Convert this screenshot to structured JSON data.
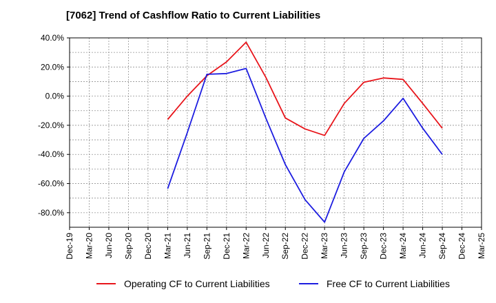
{
  "title": "[7062]  Trend of Cashflow Ratio to Current Liabilities",
  "chart_data": {
    "type": "line",
    "title": "[7062]  Trend of Cashflow Ratio to Current Liabilities",
    "categories": [
      "Dec-19",
      "Mar-20",
      "Jun-20",
      "Sep-20",
      "Dec-20",
      "Mar-21",
      "Jun-21",
      "Sep-21",
      "Dec-21",
      "Mar-22",
      "Jun-22",
      "Sep-22",
      "Dec-22",
      "Mar-23",
      "Jun-23",
      "Sep-23",
      "Dec-23",
      "Mar-24",
      "Jun-24",
      "Sep-24",
      "Dec-24",
      "Mar-25"
    ],
    "ylim": [
      -90,
      40
    ],
    "yticks": [
      40,
      20,
      0,
      -20,
      -40,
      -60,
      -80
    ],
    "ytick_labels": [
      "40.0%",
      "20.0%",
      "0.0%",
      "-20.0%",
      "-40.0%",
      "-60.0%",
      "-80.0%"
    ],
    "grid": true,
    "legend_position": "bottom",
    "series": [
      {
        "name": "Operating CF to Current Liabilities",
        "color": "#e8141a",
        "values": [
          null,
          null,
          null,
          null,
          null,
          -16,
          0,
          14,
          23.5,
          37,
          13,
          -15,
          -22.5,
          -27,
          -5,
          9.5,
          12.5,
          11.5,
          -5,
          -22,
          null,
          null
        ]
      },
      {
        "name": "Free CF to Current Liabilities",
        "color": "#1c1ce0",
        "values": [
          null,
          null,
          null,
          null,
          null,
          -63.5,
          -25,
          15,
          15.5,
          19,
          -15,
          -47,
          -71,
          -86.5,
          -52,
          -29,
          -17,
          -1.5,
          -22,
          -40,
          null,
          null
        ]
      }
    ]
  }
}
